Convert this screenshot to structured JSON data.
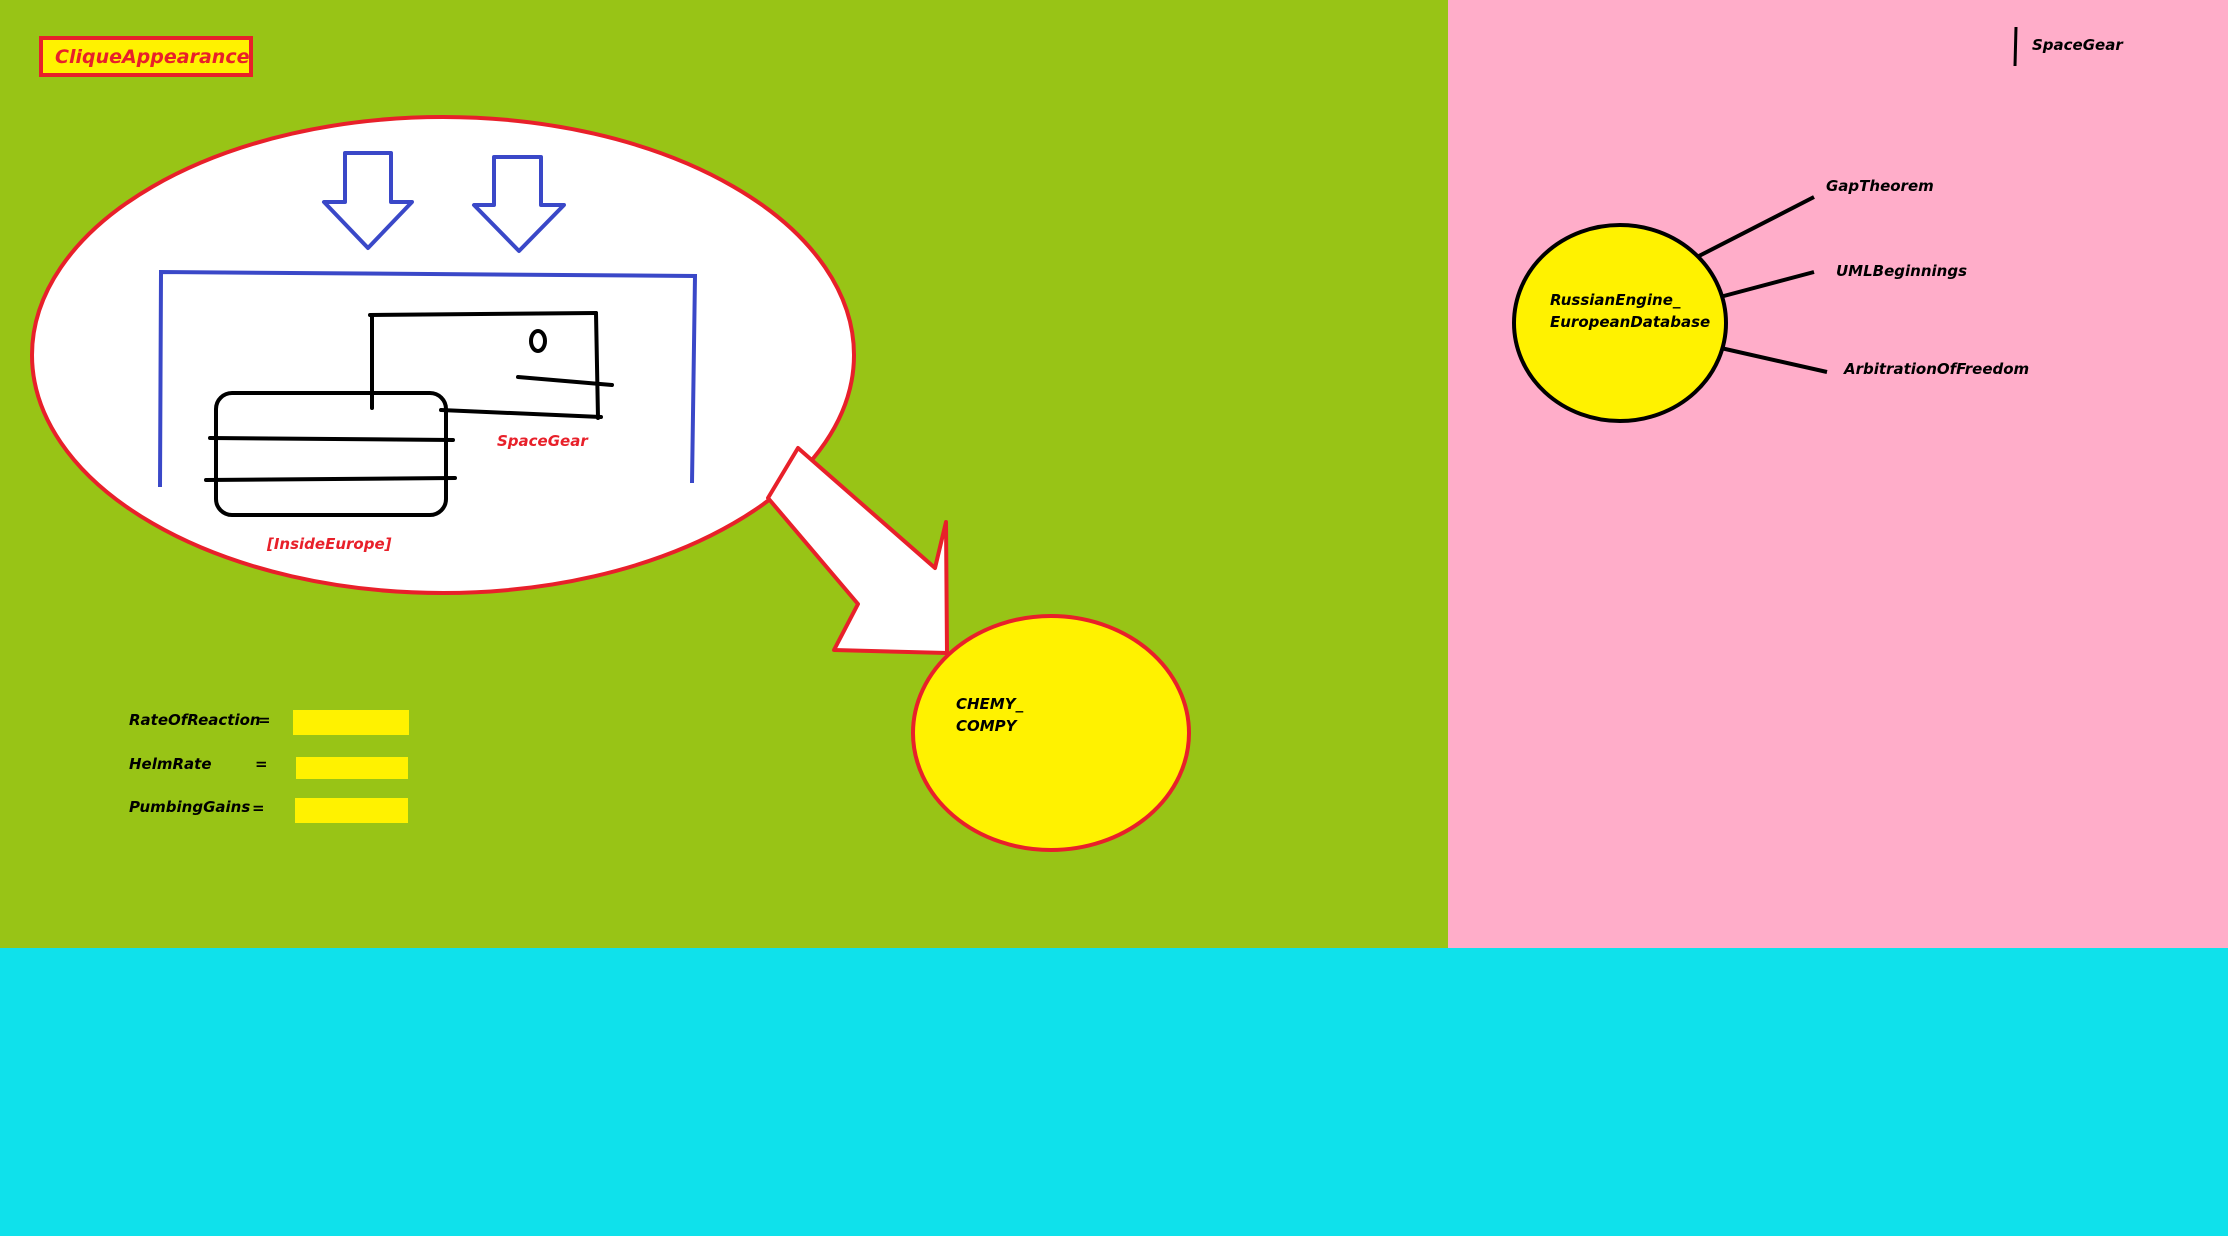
{
  "title": "CliqueAppearance",
  "colors": {
    "green_panel": "#98c416",
    "pink_panel": "#ffadc9",
    "cyan_panel": "#0fe1eb",
    "yellow": "#fff200",
    "red": "#e8202a",
    "blue": "#3a48c8",
    "black": "#000000"
  },
  "bubble": {
    "sketch_label": "SpaceGear",
    "caption": "[InsideEurope]"
  },
  "target_circle": {
    "line1": "CHEMY_",
    "line2": "COMPY"
  },
  "metrics": [
    {
      "label": "RateOfReaction",
      "equals": "=",
      "value": ""
    },
    {
      "label": "HelmRate",
      "equals": "=",
      "value": ""
    },
    {
      "label": "PumbingGains",
      "equals": "=",
      "value": ""
    }
  ],
  "pink_panel": {
    "header": "SpaceGear",
    "hub": {
      "line1": "RussianEngine_",
      "line2": "EuropeanDatabase"
    },
    "branches": [
      "GapTheorem",
      "UMLBeginnings",
      "ArbitrationOfFreedom"
    ]
  }
}
